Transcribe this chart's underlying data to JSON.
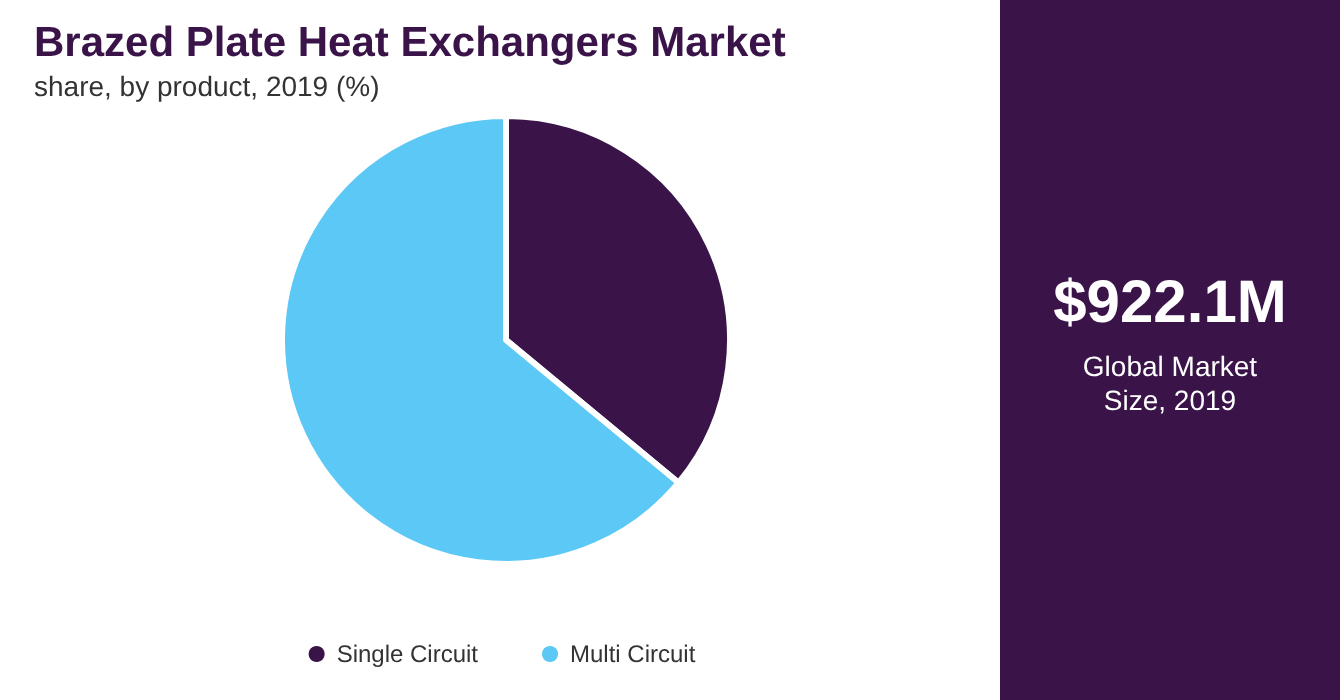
{
  "chart_data": {
    "type": "pie",
    "title": "Brazed Plate Heat Exchangers Market",
    "subtitle": "share, by product, 2019 (%)",
    "categories": [
      "Single Circuit",
      "Multi Circuit"
    ],
    "values": [
      36,
      64
    ],
    "colors": [
      "#3a1449",
      "#5bc8f5"
    ],
    "legend": "bottom",
    "annotations": [
      "$922.1M",
      "Global Market Size, 2019"
    ]
  }
}
